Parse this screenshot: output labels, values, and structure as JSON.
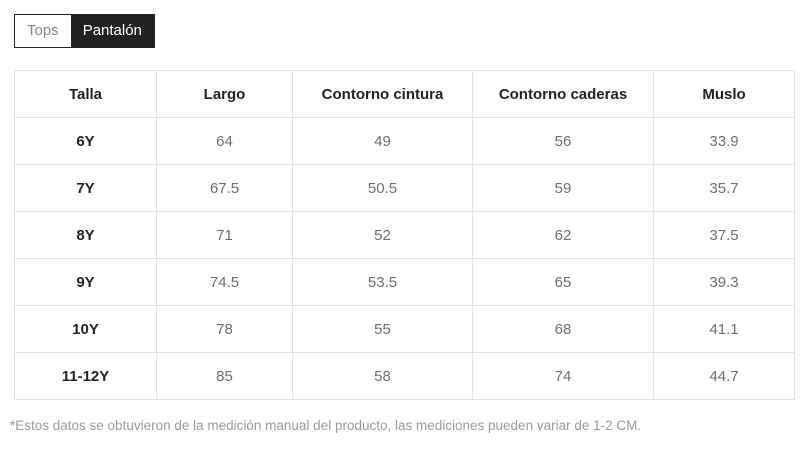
{
  "tabs": [
    {
      "label": "Tops",
      "active": false
    },
    {
      "label": "Pantalón",
      "active": true
    }
  ],
  "table": {
    "columns": [
      "Talla",
      "Largo",
      "Contorno cintura",
      "Contorno caderas",
      "Muslo"
    ],
    "rows": [
      {
        "size": "6Y",
        "values": [
          "64",
          "49",
          "56",
          "33.9"
        ]
      },
      {
        "size": "7Y",
        "values": [
          "67.5",
          "50.5",
          "59",
          "35.7"
        ]
      },
      {
        "size": "8Y",
        "values": [
          "71",
          "52",
          "62",
          "37.5"
        ]
      },
      {
        "size": "9Y",
        "values": [
          "74.5",
          "53.5",
          "65",
          "39.3"
        ]
      },
      {
        "size": "10Y",
        "values": [
          "78",
          "55",
          "68",
          "41.1"
        ]
      },
      {
        "size": "11-12Y",
        "values": [
          "85",
          "58",
          "74",
          "44.7"
        ]
      }
    ]
  },
  "footnote": "*Estos datos se obtuvieron de la medición manual del producto, las mediciones pueden variar de 1-2 CM.",
  "colors": {
    "tab_active_bg": "#222222",
    "tab_active_text": "#ffffff",
    "tab_inactive_text": "#8a8a8a",
    "table_border": "#e3e3e3",
    "header_text": "#222222",
    "cell_text": "#6e6e6e",
    "footnote_text": "#9b9b9b"
  }
}
